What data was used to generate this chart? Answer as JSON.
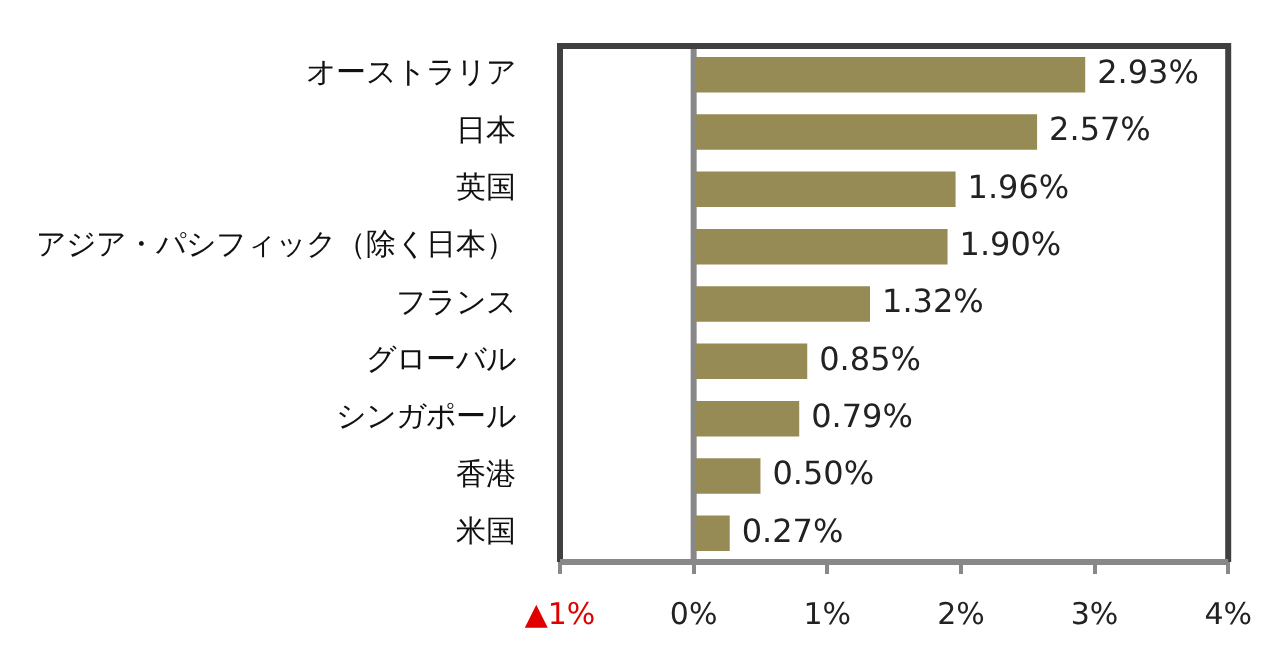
{
  "chart_data": {
    "type": "bar",
    "orientation": "horizontal",
    "categories": [
      "オーストラリア",
      "日本",
      "英国",
      "アジア・パシフィック（除く日本）",
      "フランス",
      "グローバル",
      "シンガポール",
      "香港",
      "米国"
    ],
    "values": [
      2.93,
      2.57,
      1.96,
      1.9,
      1.32,
      0.85,
      0.79,
      0.5,
      0.27
    ],
    "value_labels": [
      "2.93%",
      "2.57%",
      "1.96%",
      "1.90%",
      "1.32%",
      "0.85%",
      "0.79%",
      "0.50%",
      "0.27%"
    ],
    "color": "#968a55",
    "xlim": [
      -1,
      4
    ],
    "xticks": [
      {
        "value": -1,
        "label": "▲1%"
      },
      {
        "value": 0,
        "label": "0%"
      },
      {
        "value": 1,
        "label": "1%"
      },
      {
        "value": 2,
        "label": "2%"
      },
      {
        "value": 3,
        "label": "3%"
      },
      {
        "value": 4,
        "label": "4%"
      }
    ],
    "ref_lines": [
      {
        "axis": "x",
        "value": 0,
        "color": "#888888"
      }
    ],
    "grid": false,
    "legend": false
  }
}
